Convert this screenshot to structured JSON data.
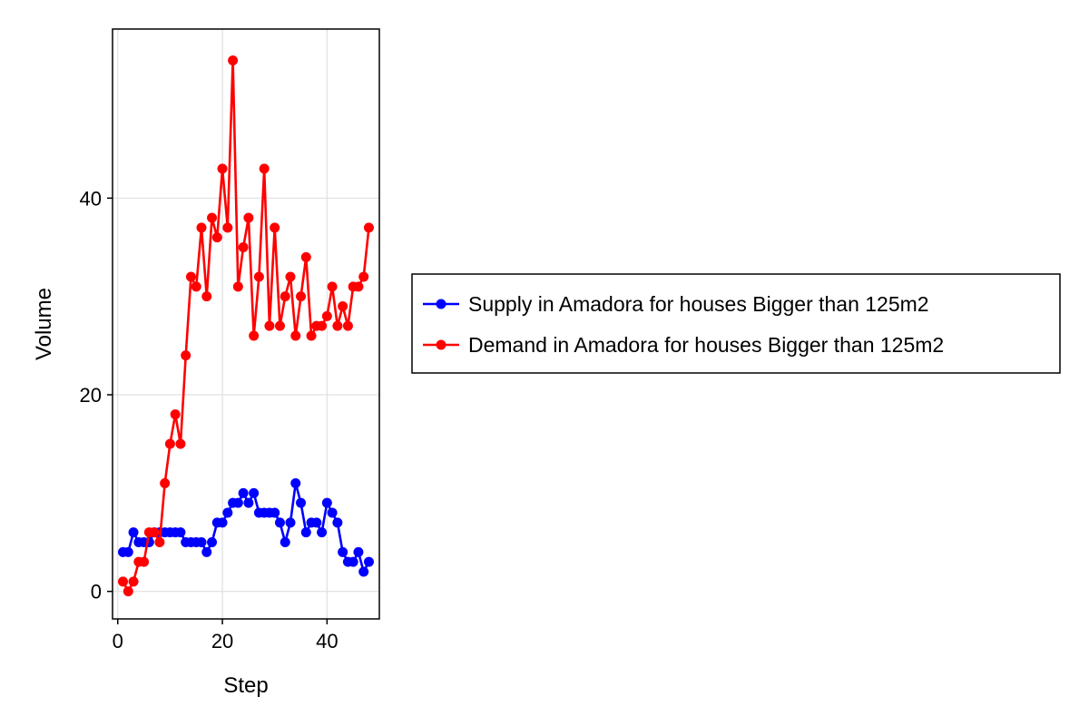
{
  "chart_data": {
    "type": "line",
    "title": "",
    "xlabel": "Step",
    "ylabel": "Volume",
    "xlim": [
      -1,
      50
    ],
    "ylim": [
      -2.8,
      57.2
    ],
    "x_ticks": [
      0,
      20,
      40
    ],
    "y_ticks": [
      0,
      20,
      40
    ],
    "grid": true,
    "legend_position": "right",
    "series": [
      {
        "name": "Supply in Amadora for houses Bigger than 125m2",
        "color": "#0000ff",
        "x": [
          1,
          2,
          3,
          4,
          5,
          6,
          7,
          8,
          9,
          10,
          11,
          12,
          13,
          14,
          15,
          16,
          17,
          18,
          19,
          20,
          21,
          22,
          23,
          24,
          25,
          26,
          27,
          28,
          29,
          30,
          31,
          32,
          33,
          34,
          35,
          36,
          37,
          38,
          39,
          40,
          41,
          42,
          43,
          44,
          45,
          46,
          47,
          48
        ],
        "y": [
          4,
          4,
          6,
          5,
          5,
          5,
          6,
          6,
          6,
          6,
          6,
          6,
          5,
          5,
          5,
          5,
          4,
          5,
          7,
          7,
          8,
          9,
          9,
          10,
          9,
          10,
          8,
          8,
          8,
          8,
          7,
          5,
          7,
          11,
          9,
          6,
          7,
          7,
          6,
          9,
          8,
          7,
          4,
          3,
          3,
          4,
          2,
          3
        ]
      },
      {
        "name": "Demand in Amadora for houses Bigger than 125m2",
        "color": "#ff0000",
        "x": [
          1,
          2,
          3,
          4,
          5,
          6,
          7,
          8,
          9,
          10,
          11,
          12,
          13,
          14,
          15,
          16,
          17,
          18,
          19,
          20,
          21,
          22,
          23,
          24,
          25,
          26,
          27,
          28,
          29,
          30,
          31,
          32,
          33,
          34,
          35,
          36,
          37,
          38,
          39,
          40,
          41,
          42,
          43,
          44,
          45,
          46,
          47,
          48
        ],
        "y": [
          1,
          0,
          1,
          3,
          3,
          6,
          6,
          5,
          11,
          15,
          18,
          15,
          24,
          32,
          31,
          37,
          30,
          38,
          36,
          43,
          37,
          54,
          31,
          35,
          38,
          26,
          32,
          43,
          27,
          37,
          27,
          30,
          32,
          26,
          30,
          34,
          26,
          27,
          27,
          28,
          31,
          27,
          29,
          27,
          31,
          31,
          32,
          37
        ]
      }
    ]
  }
}
